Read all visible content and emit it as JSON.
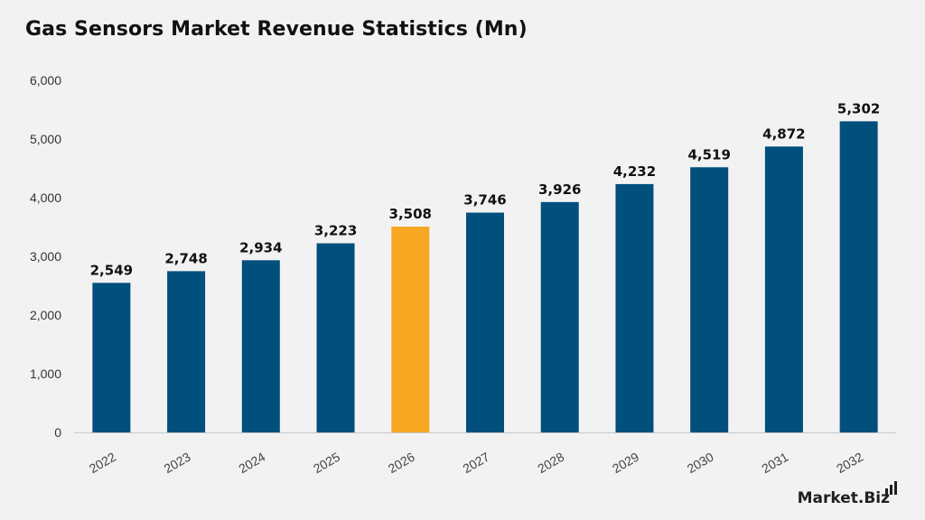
{
  "title": "Gas Sensors Market Revenue Statistics (Mn)",
  "brand": {
    "text": "Market.Biz"
  },
  "colors": {
    "bar": "#004f7c",
    "highlight": "#f7a823",
    "axis": "#c8c8c8",
    "background": "#f2f2f2"
  },
  "chart_data": {
    "type": "bar",
    "title": "Gas Sensors Market Revenue Statistics (Mn)",
    "xlabel": "",
    "ylabel": "",
    "categories": [
      "2022",
      "2023",
      "2024",
      "2025",
      "2026",
      "2027",
      "2028",
      "2029",
      "2030",
      "2031",
      "2032"
    ],
    "values": [
      2549,
      2748,
      2934,
      3223,
      3508,
      3746,
      3926,
      4232,
      4519,
      4872,
      5302
    ],
    "value_labels": [
      "2,549",
      "2,748",
      "2,934",
      "3,223",
      "3,508",
      "3,746",
      "3,926",
      "4,232",
      "4,519",
      "4,872",
      "5,302"
    ],
    "highlight_index": 4,
    "ylim": [
      0,
      6000
    ],
    "yticks": [
      0,
      1000,
      2000,
      3000,
      4000,
      5000,
      6000
    ],
    "ytick_labels": [
      "0",
      "1,000",
      "2,000",
      "3,000",
      "4,000",
      "5,000",
      "6,000"
    ],
    "grid": false,
    "legend": "none"
  }
}
